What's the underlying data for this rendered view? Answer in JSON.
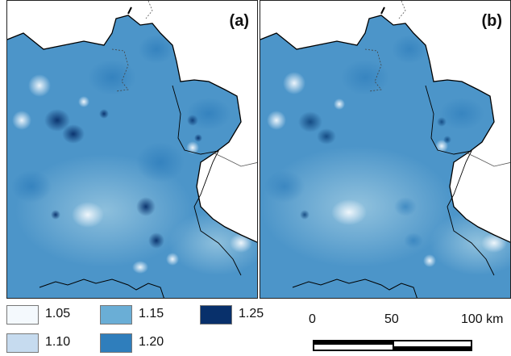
{
  "panels": [
    {
      "label": "(a)"
    },
    {
      "label": "(b)"
    }
  ],
  "legend": {
    "items": [
      {
        "value": "1.05",
        "color": "#f4f9fd"
      },
      {
        "value": "1.10",
        "color": "#c6dbef"
      },
      {
        "value": "1.15",
        "color": "#6aaed6"
      },
      {
        "value": "1.20",
        "color": "#2f7ebc"
      },
      {
        "value": "1.25",
        "color": "#08306b"
      }
    ]
  },
  "scale": {
    "ticks": [
      "0",
      "50",
      "100 km"
    ]
  },
  "colors": {
    "base": "#4c95c9",
    "light": "#c6dbef",
    "dark": "#0b3f78",
    "border": "#000000",
    "dotted_border": "#555555"
  }
}
